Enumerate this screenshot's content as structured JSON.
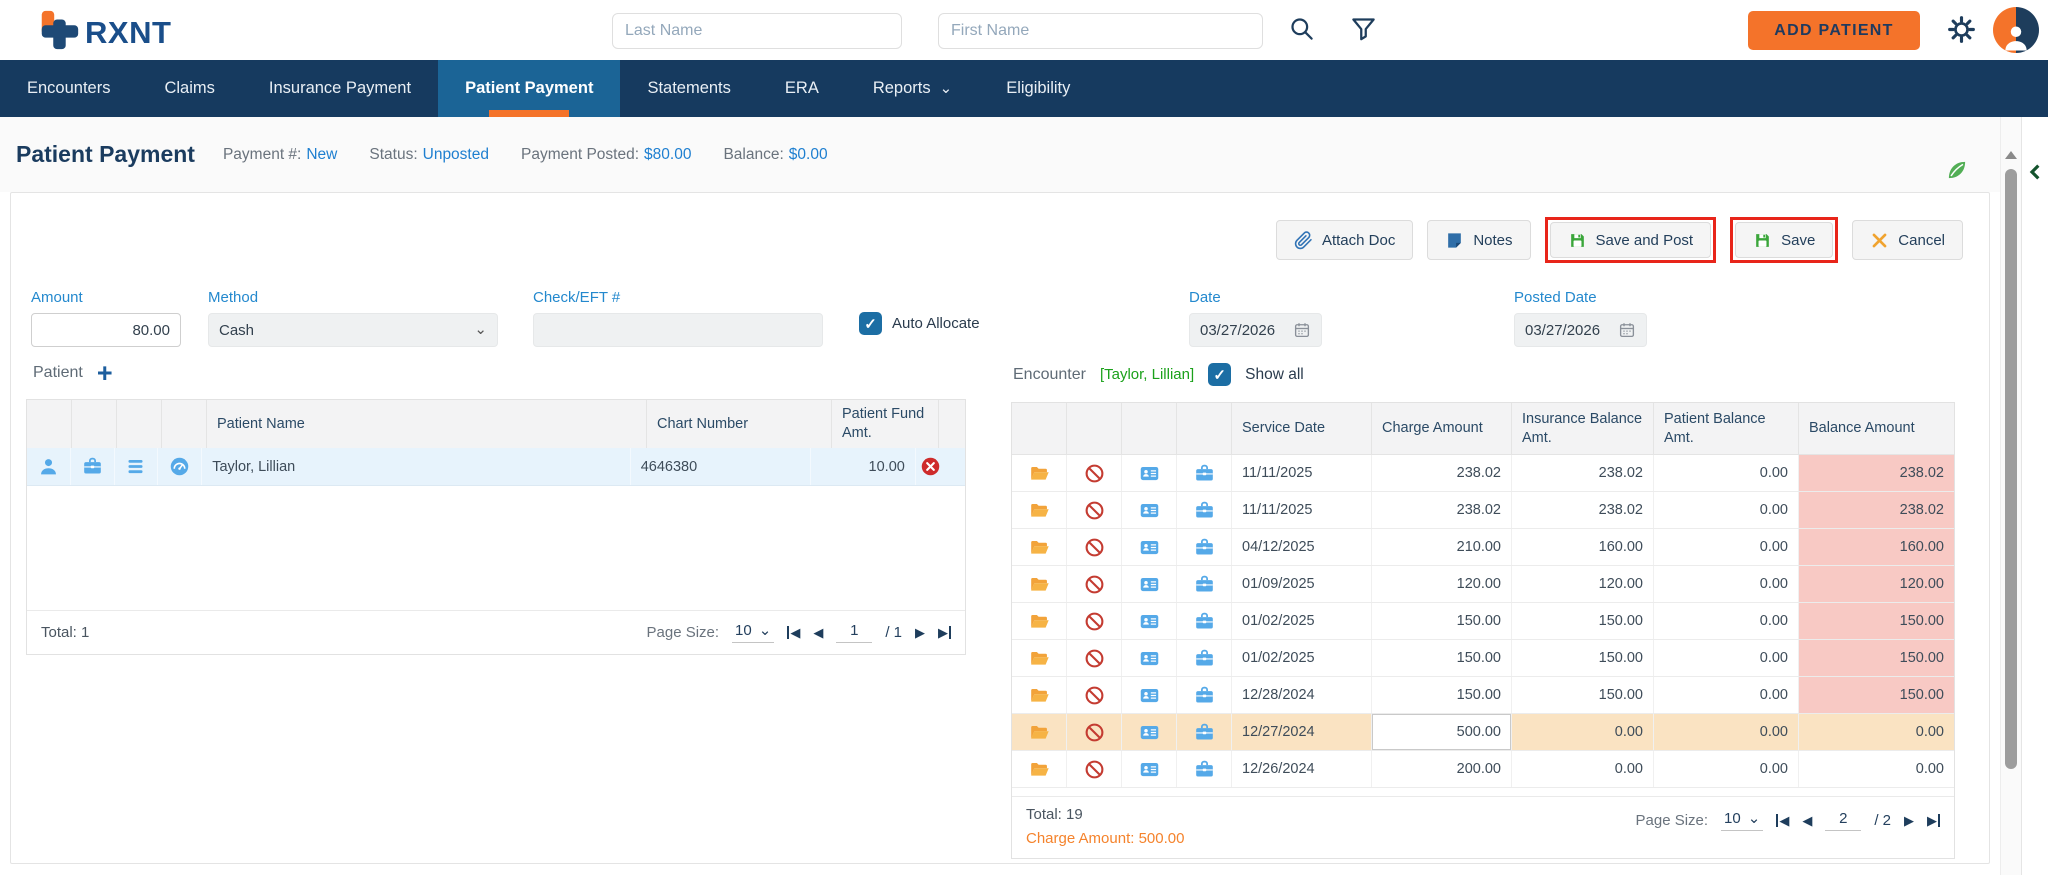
{
  "header": {
    "logo_text": "RXNT",
    "last_name_placeholder": "Last Name",
    "first_name_placeholder": "First Name",
    "add_patient_label": "ADD PATIENT"
  },
  "nav": {
    "tabs": [
      {
        "label": "Encounters",
        "active": false,
        "has_dropdown": false
      },
      {
        "label": "Claims",
        "active": false,
        "has_dropdown": false
      },
      {
        "label": "Insurance Payment",
        "active": false,
        "has_dropdown": false
      },
      {
        "label": "Patient Payment",
        "active": true,
        "has_dropdown": false
      },
      {
        "label": "Statements",
        "active": false,
        "has_dropdown": false
      },
      {
        "label": "ERA",
        "active": false,
        "has_dropdown": false
      },
      {
        "label": "Reports",
        "active": false,
        "has_dropdown": true
      },
      {
        "label": "Eligibility",
        "active": false,
        "has_dropdown": false
      }
    ]
  },
  "title_bar": {
    "title": "Patient Payment",
    "payment_label": "Payment #:",
    "payment_value": "New",
    "status_label": "Status:",
    "status_value": "Unposted",
    "posted_label": "Payment Posted:",
    "posted_value": "$80.00",
    "balance_label": "Balance:",
    "balance_value": "$0.00"
  },
  "toolbar": {
    "attach_doc_label": "Attach Doc",
    "notes_label": "Notes",
    "save_and_post_label": "Save and Post",
    "save_label": "Save",
    "cancel_label": "Cancel"
  },
  "form": {
    "amount_label": "Amount",
    "amount_value": "80.00",
    "method_label": "Method",
    "method_value": "Cash",
    "check_label": "Check/EFT #",
    "check_value": "",
    "auto_allocate_label": "Auto Allocate",
    "auto_allocate_checked": true,
    "date_label": "Date",
    "date_value": "03/27/2026",
    "posted_date_label": "Posted Date",
    "posted_date_value": "03/27/2026"
  },
  "patient_panel": {
    "section_label": "Patient",
    "add_label": "+",
    "columns": [
      "Patient Name",
      "Chart Number",
      "Patient Fund Amt."
    ],
    "row_icons": [
      "person-icon",
      "briefcase-icon",
      "menu-icon",
      "gauge-icon"
    ],
    "rows": [
      {
        "name": "Taylor, Lillian",
        "chart_number": "4646380",
        "fund_amt": "10.00"
      }
    ],
    "total_label": "Total: 1",
    "page_size_label": "Page Size:",
    "page_size": "10",
    "page": "1",
    "page_total": "/ 1"
  },
  "encounter_panel": {
    "section_label": "Encounter",
    "patient_ref": "[Taylor, Lillian]",
    "show_all_label": "Show all",
    "show_all_checked": true,
    "columns": [
      "Service Date",
      "Charge Amount",
      "Insurance Balance Amt.",
      "Patient Balance Amt.",
      "Balance Amount"
    ],
    "row_icons": [
      "folder-icon",
      "block-icon",
      "id-card-icon",
      "briefcase-icon"
    ],
    "rows": [
      {
        "service_date": "11/11/2025",
        "charge": "238.02",
        "ins_bal": "238.02",
        "pat_bal": "0.00",
        "balance": "238.02",
        "balance_highlight": true,
        "row_highlight": false
      },
      {
        "service_date": "11/11/2025",
        "charge": "238.02",
        "ins_bal": "238.02",
        "pat_bal": "0.00",
        "balance": "238.02",
        "balance_highlight": true,
        "row_highlight": false
      },
      {
        "service_date": "04/12/2025",
        "charge": "210.00",
        "ins_bal": "160.00",
        "pat_bal": "0.00",
        "balance": "160.00",
        "balance_highlight": true,
        "row_highlight": false
      },
      {
        "service_date": "01/09/2025",
        "charge": "120.00",
        "ins_bal": "120.00",
        "pat_bal": "0.00",
        "balance": "120.00",
        "balance_highlight": true,
        "row_highlight": false
      },
      {
        "service_date": "01/02/2025",
        "charge": "150.00",
        "ins_bal": "150.00",
        "pat_bal": "0.00",
        "balance": "150.00",
        "balance_highlight": true,
        "row_highlight": false
      },
      {
        "service_date": "01/02/2025",
        "charge": "150.00",
        "ins_bal": "150.00",
        "pat_bal": "0.00",
        "balance": "150.00",
        "balance_highlight": true,
        "row_highlight": false
      },
      {
        "service_date": "12/28/2024",
        "charge": "150.00",
        "ins_bal": "150.00",
        "pat_bal": "0.00",
        "balance": "150.00",
        "balance_highlight": true,
        "row_highlight": false
      },
      {
        "service_date": "12/27/2024",
        "charge": "500.00",
        "ins_bal": "0.00",
        "pat_bal": "0.00",
        "balance": "0.00",
        "balance_highlight": false,
        "row_highlight": true
      },
      {
        "service_date": "12/26/2024",
        "charge": "200.00",
        "ins_bal": "0.00",
        "pat_bal": "0.00",
        "balance": "0.00",
        "balance_highlight": false,
        "row_highlight": false
      }
    ],
    "total_label": "Total: 19",
    "charge_amount_label": "Charge Amount: 500.00",
    "page_size_label": "Page Size:",
    "page_size": "10",
    "page": "2",
    "page_total": "/ 2"
  },
  "colors": {
    "brand_orange": "#F4732A",
    "nav_navy": "#163A5F",
    "active_tab_blue": "#1B6496",
    "label_blue": "#2489CE",
    "link_blue": "#1E7FD0",
    "save_green": "#3BA63B",
    "highlight_red_outline": "#E8251A",
    "balance_pink": "#F8C9C4",
    "selected_row_tan": "#FAE3C2",
    "patient_row_blue": "#E7F3FC",
    "patient_ref_green": "#1BA11B",
    "charge_orange": "#F5832C"
  }
}
